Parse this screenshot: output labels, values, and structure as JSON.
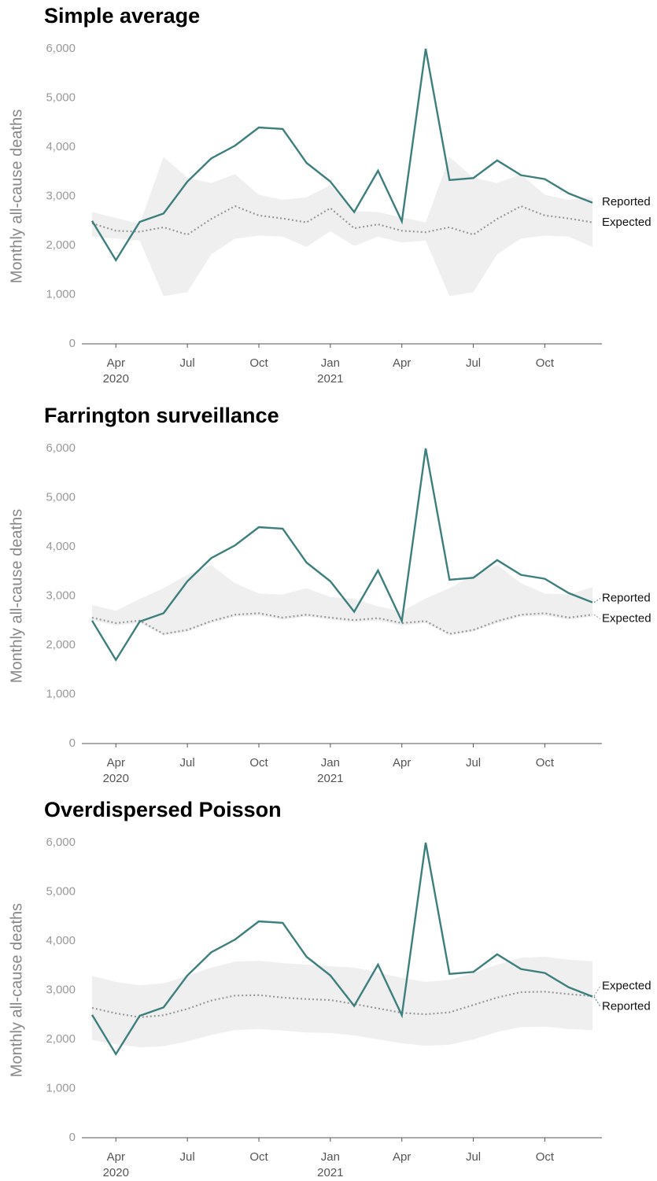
{
  "chart_data": [
    {
      "type": "line",
      "title": "Simple average",
      "y_label": "Monthly all-cause deaths",
      "x": [
        "2020-03",
        "2020-04",
        "2020-05",
        "2020-06",
        "2020-07",
        "2020-08",
        "2020-09",
        "2020-10",
        "2020-11",
        "2020-12",
        "2021-01",
        "2021-02",
        "2021-03",
        "2021-04",
        "2021-05",
        "2021-06",
        "2021-07",
        "2021-08",
        "2021-09",
        "2021-10",
        "2021-11",
        "2021-12"
      ],
      "xticks": [
        {
          "value": "2020-04",
          "label": "Apr",
          "year": "2020"
        },
        {
          "value": "2020-07",
          "label": "Jul"
        },
        {
          "value": "2020-10",
          "label": "Oct"
        },
        {
          "value": "2021-01",
          "label": "Jan",
          "year": "2021"
        },
        {
          "value": "2021-04",
          "label": "Apr"
        },
        {
          "value": "2021-07",
          "label": "Jul"
        },
        {
          "value": "2021-10",
          "label": "Oct"
        }
      ],
      "ylim": [
        0,
        6000
      ],
      "yticks": [
        0,
        {
          "value": 1000,
          "label": "1,000"
        },
        {
          "value": 2000,
          "label": "2,000"
        },
        {
          "value": 3000,
          "label": "3,000"
        },
        {
          "value": 4000,
          "label": "4,000"
        },
        {
          "value": 5000,
          "label": "5,000"
        },
        {
          "value": 6000,
          "label": "6,000"
        }
      ],
      "band": {
        "color": "#efefef",
        "upper": [
          2680,
          2560,
          2440,
          3800,
          3380,
          3270,
          3450,
          3030,
          2930,
          2980,
          3230,
          2700,
          2680,
          2570,
          2470,
          3800,
          3380,
          3270,
          3450,
          3030,
          2930,
          2980
        ],
        "lower": [
          2180,
          2140,
          2100,
          970,
          1050,
          1820,
          2140,
          2200,
          2180,
          1970,
          2290,
          1990,
          2180,
          2060,
          2100,
          970,
          1050,
          1820,
          2140,
          2200,
          2180,
          1970
        ]
      },
      "series": [
        {
          "name": "Reported",
          "color": "#3d7f7d",
          "style": "solid",
          "values": [
            2500,
            1700,
            2480,
            2650,
            3300,
            3770,
            4030,
            4400,
            4370,
            3680,
            3300,
            2680,
            3520,
            2490,
            6000,
            3330,
            3370,
            3730,
            3430,
            3350,
            3060,
            2870
          ]
        },
        {
          "name": "Expected",
          "color": "#999999",
          "style": "dotted",
          "values": [
            2450,
            2300,
            2280,
            2370,
            2220,
            2540,
            2800,
            2610,
            2550,
            2470,
            2760,
            2350,
            2430,
            2300,
            2270,
            2370,
            2220,
            2540,
            2800,
            2610,
            2550,
            2470
          ]
        }
      ]
    },
    {
      "type": "line",
      "title": "Farrington surveillance",
      "y_label": "Monthly all-cause deaths",
      "x": [
        "2020-03",
        "2020-04",
        "2020-05",
        "2020-06",
        "2020-07",
        "2020-08",
        "2020-09",
        "2020-10",
        "2020-11",
        "2020-12",
        "2021-01",
        "2021-02",
        "2021-03",
        "2021-04",
        "2021-05",
        "2021-06",
        "2021-07",
        "2021-08",
        "2021-09",
        "2021-10",
        "2021-11",
        "2021-12"
      ],
      "xticks": [
        {
          "value": "2020-04",
          "label": "Apr",
          "year": "2020"
        },
        {
          "value": "2020-07",
          "label": "Jul"
        },
        {
          "value": "2020-10",
          "label": "Oct"
        },
        {
          "value": "2021-01",
          "label": "Jan",
          "year": "2021"
        },
        {
          "value": "2021-04",
          "label": "Apr"
        },
        {
          "value": "2021-07",
          "label": "Jul"
        },
        {
          "value": "2021-10",
          "label": "Oct"
        }
      ],
      "ylim": [
        0,
        6000
      ],
      "yticks": [
        0,
        {
          "value": 1000,
          "label": "1,000"
        },
        {
          "value": 2000,
          "label": "2,000"
        },
        {
          "value": 3000,
          "label": "3,000"
        },
        {
          "value": 4000,
          "label": "4,000"
        },
        {
          "value": 5000,
          "label": "5,000"
        },
        {
          "value": 6000,
          "label": "6,000"
        }
      ],
      "band": {
        "color": "#efefef",
        "upper": [
          2820,
          2700,
          2940,
          3160,
          3430,
          3630,
          3260,
          3050,
          3030,
          3160,
          2980,
          2940,
          2790,
          2690,
          2950,
          3160,
          3430,
          3630,
          3260,
          3050,
          3030,
          3180
        ],
        "lower": [
          2500,
          2400,
          2450,
          2200,
          2280,
          2450,
          2580,
          2600,
          2520,
          2580,
          2520,
          2470,
          2500,
          2400,
          2450,
          2200,
          2280,
          2450,
          2580,
          2600,
          2520,
          2580
        ]
      },
      "series": [
        {
          "name": "Reported",
          "color": "#3d7f7d",
          "style": "solid",
          "values": [
            2500,
            1700,
            2480,
            2650,
            3300,
            3770,
            4030,
            4400,
            4370,
            3680,
            3300,
            2680,
            3520,
            2490,
            6000,
            3330,
            3370,
            3730,
            3430,
            3350,
            3060,
            2870
          ]
        },
        {
          "name": "Expected",
          "color": "#999999",
          "style": "dotted",
          "values": [
            2560,
            2450,
            2500,
            2230,
            2310,
            2490,
            2620,
            2650,
            2560,
            2620,
            2560,
            2510,
            2550,
            2450,
            2490,
            2230,
            2310,
            2490,
            2620,
            2650,
            2560,
            2620
          ]
        }
      ]
    },
    {
      "type": "line",
      "title": "Overdispersed Poisson",
      "y_label": "Monthly all-cause deaths",
      "x": [
        "2020-03",
        "2020-04",
        "2020-05",
        "2020-06",
        "2020-07",
        "2020-08",
        "2020-09",
        "2020-10",
        "2020-11",
        "2020-12",
        "2021-01",
        "2021-02",
        "2021-03",
        "2021-04",
        "2021-05",
        "2021-06",
        "2021-07",
        "2021-08",
        "2021-09",
        "2021-10",
        "2021-11",
        "2021-12"
      ],
      "xticks": [
        {
          "value": "2020-04",
          "label": "Apr",
          "year": "2020"
        },
        {
          "value": "2020-07",
          "label": "Jul"
        },
        {
          "value": "2020-10",
          "label": "Oct"
        },
        {
          "value": "2021-01",
          "label": "Jan",
          "year": "2021"
        },
        {
          "value": "2021-04",
          "label": "Apr"
        },
        {
          "value": "2021-07",
          "label": "Jul"
        },
        {
          "value": "2021-10",
          "label": "Oct"
        }
      ],
      "ylim": [
        0,
        6000
      ],
      "yticks": [
        0,
        {
          "value": 1000,
          "label": "1,000"
        },
        {
          "value": 2000,
          "label": "2,000"
        },
        {
          "value": 3000,
          "label": "3,000"
        },
        {
          "value": 4000,
          "label": "4,000"
        },
        {
          "value": 5000,
          "label": "5,000"
        },
        {
          "value": 6000,
          "label": "6,000"
        }
      ],
      "band": {
        "color": "#efefef",
        "upper": [
          3290,
          3170,
          3100,
          3140,
          3290,
          3460,
          3580,
          3600,
          3550,
          3520,
          3490,
          3460,
          3360,
          3250,
          3170,
          3210,
          3350,
          3520,
          3660,
          3680,
          3620,
          3590
        ],
        "lower": [
          1990,
          1900,
          1840,
          1860,
          1960,
          2090,
          2190,
          2210,
          2180,
          2140,
          2130,
          2080,
          2000,
          1920,
          1870,
          1890,
          2000,
          2150,
          2250,
          2260,
          2210,
          2190
        ]
      },
      "series": [
        {
          "name": "Reported",
          "color": "#3d7f7d",
          "style": "solid",
          "values": [
            2500,
            1700,
            2480,
            2650,
            3300,
            3770,
            4030,
            4400,
            4370,
            3680,
            3300,
            2680,
            3520,
            2490,
            6000,
            3330,
            3370,
            3730,
            3430,
            3350,
            3060,
            2870
          ]
        },
        {
          "name": "Expected",
          "color": "#999999",
          "style": "dotted",
          "values": [
            2640,
            2530,
            2450,
            2490,
            2620,
            2790,
            2890,
            2900,
            2850,
            2820,
            2800,
            2720,
            2630,
            2540,
            2510,
            2550,
            2700,
            2850,
            2960,
            2970,
            2920,
            2880
          ]
        }
      ]
    }
  ]
}
